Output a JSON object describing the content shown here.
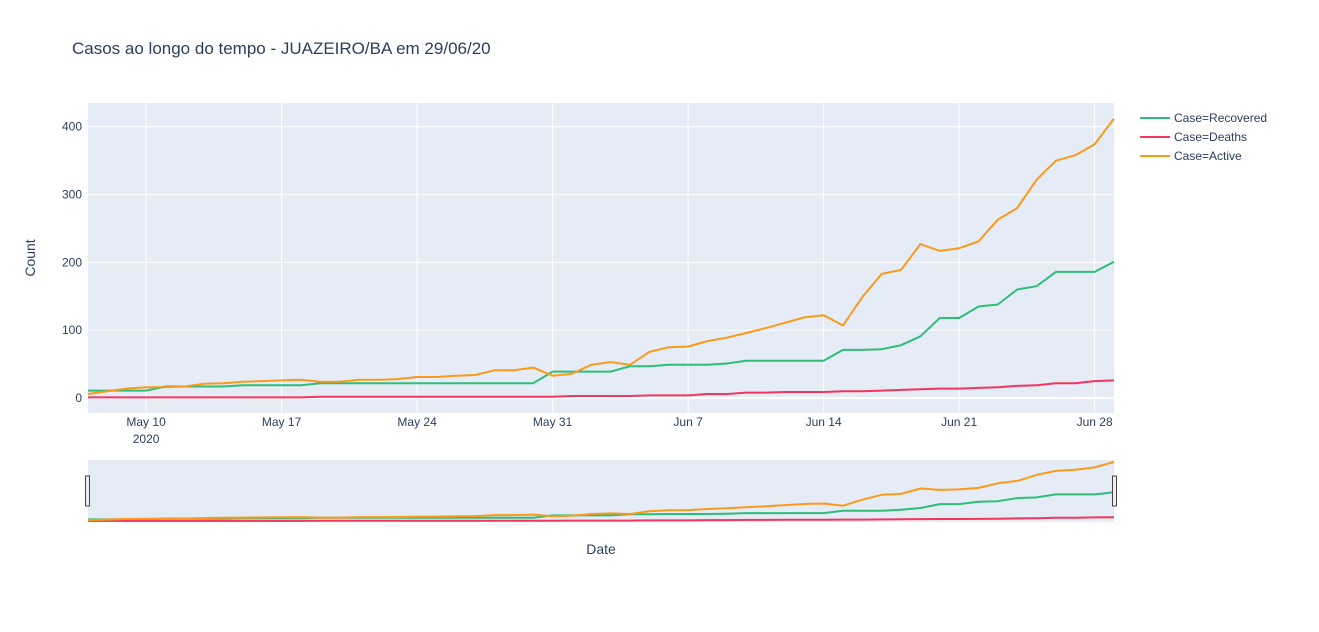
{
  "chart_data": {
    "type": "line",
    "title": "Casos ao longo do tempo - JUAZEIRO/BA em 29/06/20",
    "xlabel": "Date",
    "ylabel": "Count",
    "xlim": [
      "2020-05-07",
      "2020-06-29"
    ],
    "ylim": [
      -22,
      435
    ],
    "x_ticks": [
      "May 10",
      "May 17",
      "May 24",
      "May 31",
      "Jun 7",
      "Jun 14",
      "Jun 21",
      "Jun 28"
    ],
    "x_tick_year": "2020",
    "y_ticks": [
      "0",
      "100",
      "200",
      "300",
      "400"
    ],
    "y_tick_values": [
      0,
      100,
      200,
      300,
      400
    ],
    "grid": true,
    "legend_position": "right",
    "rangeslider": true,
    "x": [
      "2020-05-07",
      "2020-05-08",
      "2020-05-09",
      "2020-05-10",
      "2020-05-11",
      "2020-05-12",
      "2020-05-13",
      "2020-05-14",
      "2020-05-15",
      "2020-05-16",
      "2020-05-17",
      "2020-05-18",
      "2020-05-19",
      "2020-05-20",
      "2020-05-21",
      "2020-05-22",
      "2020-05-23",
      "2020-05-24",
      "2020-05-25",
      "2020-05-26",
      "2020-05-27",
      "2020-05-28",
      "2020-05-29",
      "2020-05-30",
      "2020-05-31",
      "2020-06-01",
      "2020-06-02",
      "2020-06-03",
      "2020-06-04",
      "2020-06-05",
      "2020-06-06",
      "2020-06-07",
      "2020-06-08",
      "2020-06-09",
      "2020-06-10",
      "2020-06-11",
      "2020-06-12",
      "2020-06-13",
      "2020-06-14",
      "2020-06-15",
      "2020-06-16",
      "2020-06-17",
      "2020-06-18",
      "2020-06-19",
      "2020-06-20",
      "2020-06-21",
      "2020-06-22",
      "2020-06-23",
      "2020-06-24",
      "2020-06-25",
      "2020-06-26",
      "2020-06-27",
      "2020-06-28",
      "2020-06-29"
    ],
    "series": [
      {
        "name": "Case=Recovered",
        "color": "#2ebd7a",
        "values": [
          11,
          11,
          11,
          11,
          17,
          17,
          17,
          17,
          19,
          19,
          19,
          19,
          22,
          22,
          22,
          22,
          22,
          22,
          22,
          22,
          22,
          22,
          22,
          22,
          39,
          39,
          39,
          39,
          47,
          47,
          49,
          49,
          49,
          51,
          55,
          55,
          55,
          55,
          55,
          71,
          71,
          72,
          78,
          91,
          118,
          118,
          135,
          138,
          160,
          165,
          186,
          186,
          186,
          201
        ]
      },
      {
        "name": "Case=Deaths",
        "color": "#f2365f",
        "values": [
          1,
          1,
          1,
          1,
          1,
          1,
          1,
          1,
          1,
          1,
          1,
          1,
          2,
          2,
          2,
          2,
          2,
          2,
          2,
          2,
          2,
          2,
          2,
          2,
          2,
          3,
          3,
          3,
          3,
          4,
          4,
          4,
          6,
          6,
          8,
          8,
          9,
          9,
          9,
          10,
          10,
          11,
          12,
          13,
          14,
          14,
          15,
          16,
          18,
          19,
          22,
          22,
          25,
          26
        ]
      },
      {
        "name": "Case=Active",
        "color": "#fa9a1a",
        "values": [
          6,
          10,
          14,
          16,
          16,
          17,
          21,
          22,
          24,
          25,
          26,
          27,
          24,
          24,
          27,
          27,
          28,
          31,
          31,
          33,
          34,
          41,
          41,
          45,
          33,
          36,
          49,
          53,
          49,
          68,
          75,
          76,
          84,
          89,
          96,
          103,
          111,
          119,
          122,
          107,
          149,
          183,
          189,
          227,
          217,
          221,
          231,
          263,
          280,
          322,
          350,
          358,
          374,
          412
        ]
      }
    ]
  }
}
